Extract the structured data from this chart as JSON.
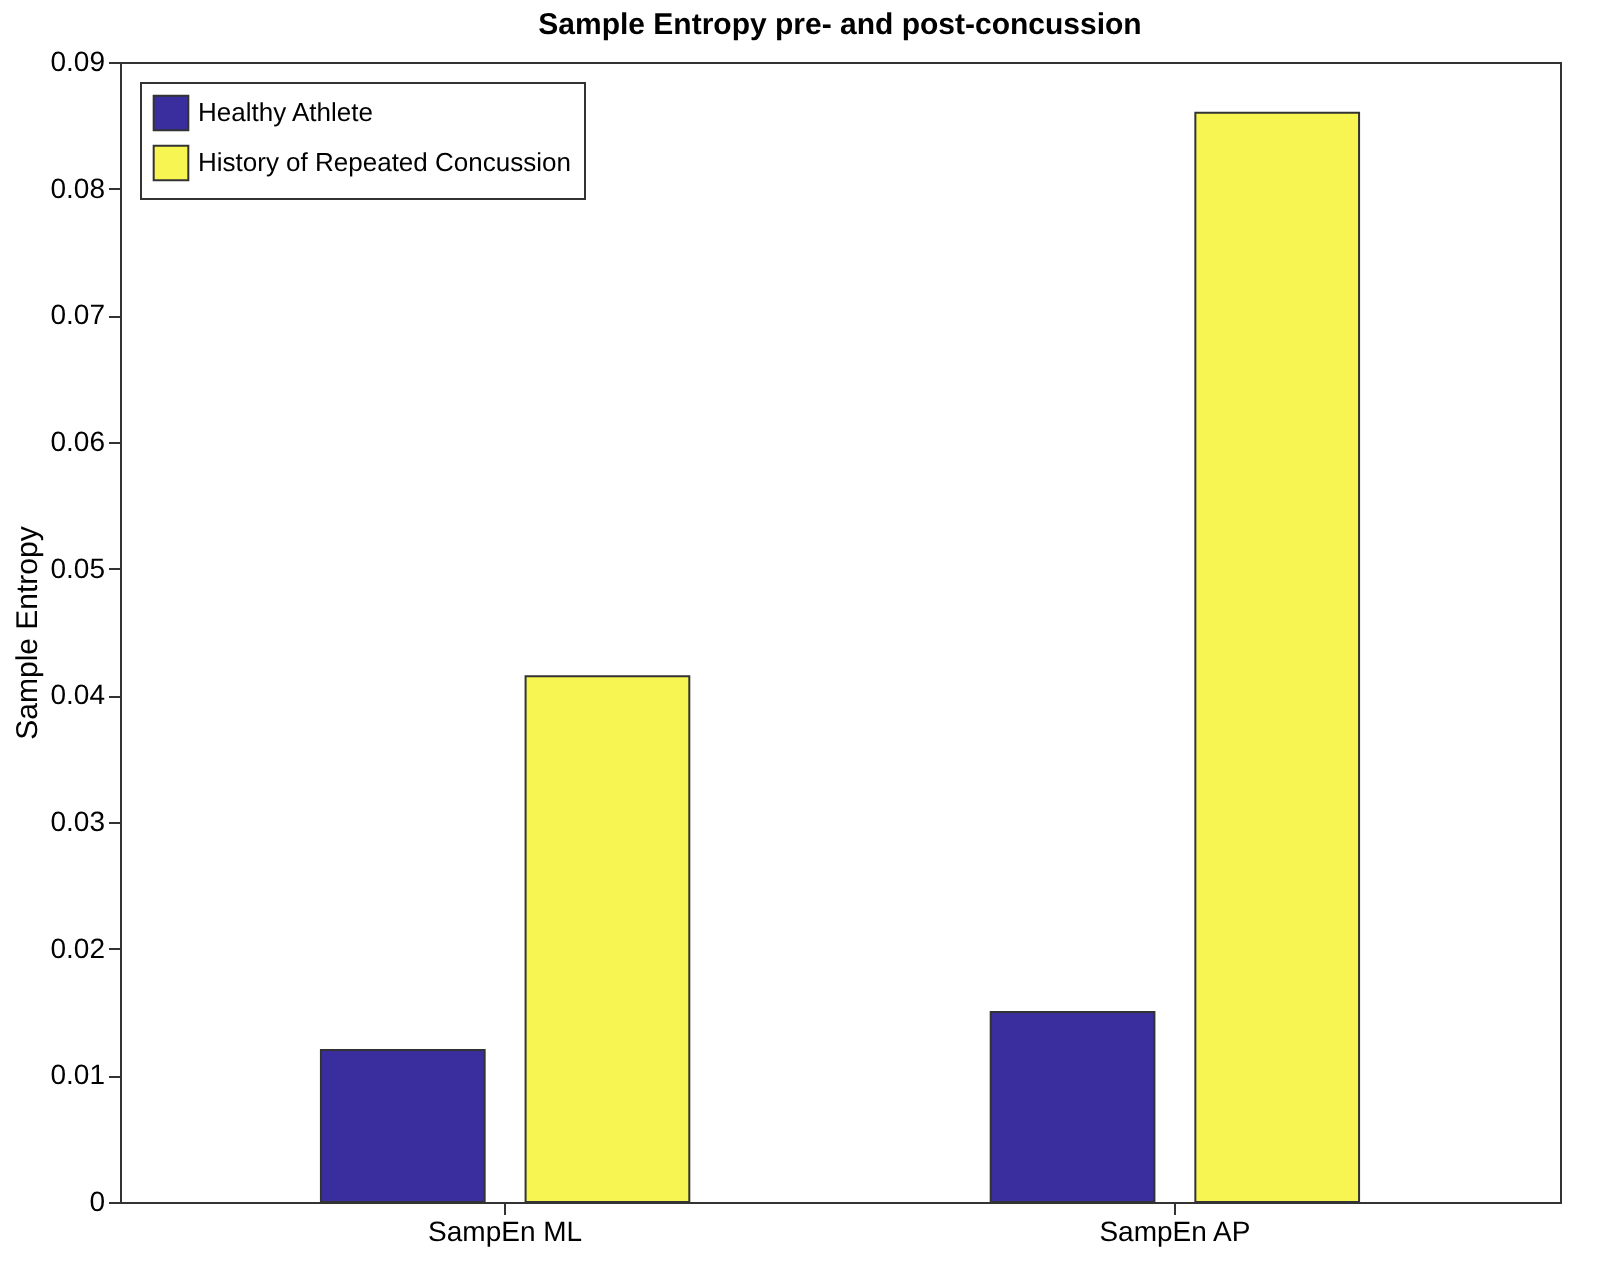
{
  "chart_data": {
    "type": "bar",
    "title": "Sample Entropy pre- and post-concussion",
    "ylabel": "Sample Entropy",
    "categories": [
      "SampEn ML",
      "SampEn AP"
    ],
    "series": [
      {
        "name": "Healthy Athlete",
        "color": "#3a2d9e",
        "values": [
          0.012,
          0.015
        ]
      },
      {
        "name": "History of Repeated Concussion",
        "color": "#f7f552",
        "values": [
          0.0415,
          0.086
        ]
      }
    ],
    "ylim": [
      0,
      0.09
    ],
    "yticks": [
      0,
      0.01,
      0.02,
      0.03,
      0.04,
      0.05,
      0.06,
      0.07,
      0.08,
      0.09
    ],
    "grid": false,
    "legend": "top left"
  }
}
